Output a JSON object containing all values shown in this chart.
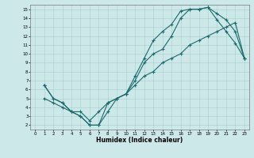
{
  "xlabel": "Humidex (Indice chaleur)",
  "xlim": [
    -0.5,
    23.5
  ],
  "ylim": [
    1.5,
    15.5
  ],
  "xticks": [
    0,
    1,
    2,
    3,
    4,
    5,
    6,
    7,
    8,
    9,
    10,
    11,
    12,
    13,
    14,
    15,
    16,
    17,
    18,
    19,
    20,
    21,
    22,
    23
  ],
  "yticks": [
    2,
    3,
    4,
    5,
    6,
    7,
    8,
    9,
    10,
    11,
    12,
    13,
    14,
    15
  ],
  "bg_color": "#cce8e8",
  "grid_color": "#aacccc",
  "line_color": "#1a6b6b",
  "line1_x": [
    1,
    2,
    3,
    4,
    5,
    6,
    7,
    8,
    9,
    10,
    11,
    12,
    13,
    14,
    15,
    16,
    17,
    18,
    19,
    20,
    21,
    22,
    23
  ],
  "line1_y": [
    6.5,
    5,
    4.5,
    3.5,
    3,
    2,
    2,
    4.5,
    5,
    5.5,
    7.5,
    9.5,
    11.5,
    12.5,
    13.3,
    14.8,
    15,
    15,
    15.2,
    13.8,
    12.5,
    11.2,
    9.5
  ],
  "line2_x": [
    1,
    2,
    3,
    4,
    5,
    6,
    7,
    8,
    9,
    10,
    11,
    12,
    13,
    14,
    15,
    16,
    17,
    18,
    19,
    20,
    21,
    22,
    23
  ],
  "line2_y": [
    6.5,
    5,
    4.5,
    3.5,
    3,
    2,
    2,
    3.5,
    5,
    5.5,
    7,
    9,
    10,
    10.5,
    12,
    14,
    15,
    15,
    15.2,
    14.5,
    13.8,
    12.5,
    9.5
  ],
  "line3_x": [
    1,
    2,
    3,
    4,
    5,
    6,
    7,
    8,
    9,
    10,
    11,
    12,
    13,
    14,
    15,
    16,
    17,
    18,
    19,
    20,
    21,
    22,
    23
  ],
  "line3_y": [
    5,
    4.5,
    4,
    3.5,
    3.5,
    2.5,
    3.5,
    4.5,
    5,
    5.5,
    6.5,
    7.5,
    8,
    9,
    9.5,
    10,
    11,
    11.5,
    12,
    12.5,
    13,
    13.5,
    9.5
  ]
}
